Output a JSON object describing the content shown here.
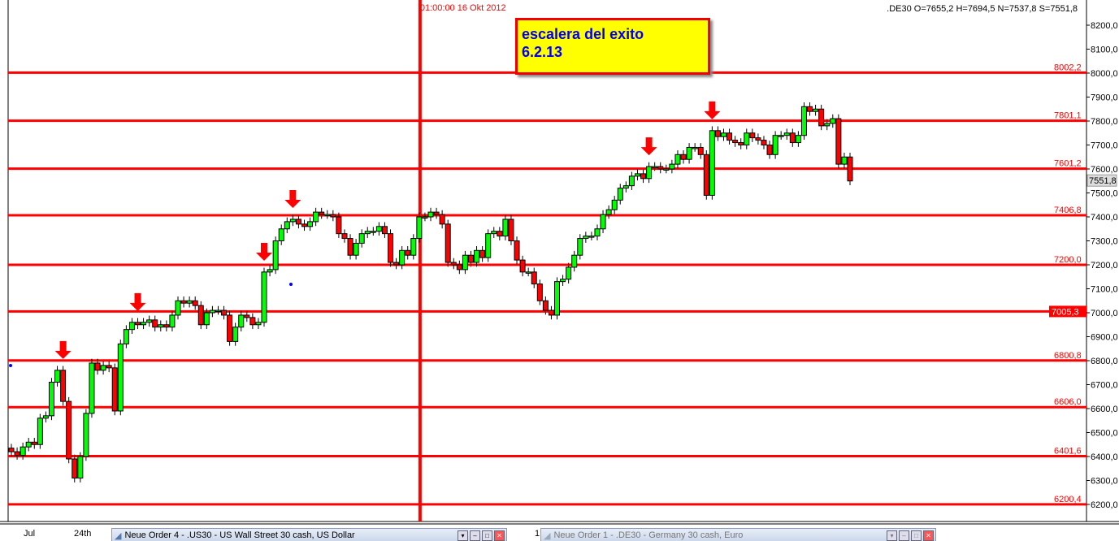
{
  "chart_data": {
    "type": "candlestick",
    "symbol_info": ".DE30 O=7655,2 H=7694,5 N=7537,8 S=7551,8",
    "ylim": [
      6200,
      8250
    ],
    "yticks": [
      "8200,0",
      "8100,0",
      "8000,0",
      "7900,0",
      "7800,0",
      "7700,0",
      "7600,0",
      "7500,0",
      "7400,0",
      "7300,0",
      "7200,0",
      "7100,0",
      "7000,0",
      "6900,0",
      "6800,0",
      "6700,0",
      "6600,0",
      "6500,0",
      "6400,0",
      "6300,0",
      "6200,0"
    ],
    "xticks": [
      "Jul",
      "24th",
      "1"
    ],
    "current_price": "7551,8",
    "closes": [
      6420,
      6405,
      6440,
      6460,
      6450,
      6560,
      6570,
      6710,
      6760,
      6630,
      6390,
      6310,
      6400,
      6580,
      6790,
      6760,
      6780,
      6770,
      6590,
      6870,
      6930,
      6960,
      6950,
      6960,
      6970,
      6940,
      6950,
      6940,
      6990,
      7050,
      7040,
      7050,
      7030,
      6950,
      7000,
      7010,
      7010,
      6990,
      6880,
      6940,
      6990,
      6980,
      6950,
      6960,
      7170,
      7180,
      7300,
      7350,
      7380,
      7390,
      7370,
      7360,
      7380,
      7420,
      7410,
      7410,
      7400,
      7330,
      7310,
      7240,
      7290,
      7330,
      7340,
      7340,
      7360,
      7330,
      7210,
      7200,
      7260,
      7240,
      7310,
      7400,
      7400,
      7420,
      7410,
      7370,
      7210,
      7200,
      7180,
      7240,
      7210,
      7260,
      7230,
      7330,
      7340,
      7320,
      7390,
      7300,
      7220,
      7170,
      7170,
      7120,
      7050,
      7010,
      6990,
      7130,
      7140,
      7190,
      7240,
      7310,
      7320,
      7320,
      7350,
      7410,
      7430,
      7470,
      7520,
      7530,
      7570,
      7580,
      7560,
      7610,
      7610,
      7600,
      7600,
      7620,
      7660,
      7640,
      7690,
      7690,
      7660,
      7490,
      7760,
      7735,
      7750,
      7720,
      7710,
      7700,
      7750,
      7730,
      7720,
      7700,
      7660,
      7740,
      7740,
      7750,
      7710,
      7740,
      7860,
      7840,
      7850,
      7780,
      7790,
      7810,
      7620,
      7650,
      7550
    ],
    "levels": [
      {
        "value": 8002.2,
        "label": "8002,2"
      },
      {
        "value": 7801.1,
        "label": "7801,1"
      },
      {
        "value": 7601.2,
        "label": "7601,2"
      },
      {
        "value": 7406.8,
        "label": "7406,8"
      },
      {
        "value": 7200.0,
        "label": "7200,0"
      },
      {
        "value": 7005.3,
        "label": "7005,3",
        "highlight": true
      },
      {
        "value": 6800.8,
        "label": "6800,8"
      },
      {
        "value": 6606.0,
        "label": "6606,0"
      },
      {
        "value": 6401.6,
        "label": "6401,6"
      },
      {
        "value": 6200.4,
        "label": "6200,4"
      }
    ],
    "arrow_candles": [
      9,
      22,
      44,
      49,
      111,
      122
    ],
    "vertical_marker": {
      "candle": 71,
      "label": "01:00:00 16 Okt 2012"
    },
    "colors": {
      "up": "#00ff00",
      "down": "#ff0000",
      "level": "#ff0000",
      "note_bg": "#ffff00",
      "note_text": "#0000ee"
    }
  },
  "note": {
    "line1": "escalera del exito",
    "line2": "6.2.13"
  },
  "taskbar": [
    {
      "title": "Neue Order 4 - .US30 - US Wall Street 30 cash, US Dollar"
    },
    {
      "title": "Neue Order 1 - .DE30 - Germany 30 cash, Euro"
    }
  ]
}
